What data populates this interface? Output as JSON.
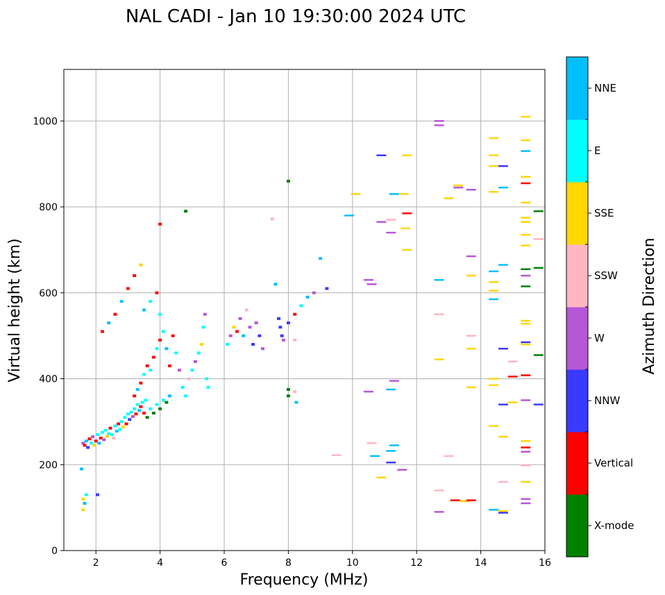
{
  "chart_data": {
    "type": "scatter",
    "title": "NAL CADI - Jan 10 19:30:00 2024 UTC",
    "xlabel": "Frequency (MHz)",
    "ylabel": "Virtual height (km)",
    "xlim": [
      1,
      16
    ],
    "ylim": [
      0,
      1120
    ],
    "xticks": [
      2,
      4,
      6,
      8,
      10,
      12,
      14,
      16
    ],
    "yticks": [
      0,
      200,
      400,
      600,
      800,
      1000
    ],
    "grid": true,
    "colorbar": {
      "label": "Azimuth Direction",
      "placement": "right",
      "entries": [
        {
          "name": "X-mode",
          "color": "#008000"
        },
        {
          "name": "Vertical",
          "color": "#ff0000"
        },
        {
          "name": "NNW",
          "color": "#3a3aff"
        },
        {
          "name": "W",
          "color": "#b657d6"
        },
        {
          "name": "SSW",
          "color": "#ffb6c1"
        },
        {
          "name": "SSE",
          "color": "#ffd700"
        },
        {
          "name": "E",
          "color": "#00ffff"
        },
        {
          "name": "NNE",
          "color": "#00bfff"
        }
      ]
    },
    "points": [
      [
        1.6,
        250,
        "W"
      ],
      [
        1.65,
        245,
        "Vertical"
      ],
      [
        1.7,
        255,
        "NNE"
      ],
      [
        1.75,
        240,
        "NNW"
      ],
      [
        1.8,
        260,
        "Vertical"
      ],
      [
        1.85,
        250,
        "E"
      ],
      [
        1.9,
        265,
        "W"
      ],
      [
        1.95,
        245,
        "SSE"
      ],
      [
        2.0,
        255,
        "Vertical"
      ],
      [
        2.05,
        270,
        "E"
      ],
      [
        2.1,
        250,
        "NNE"
      ],
      [
        2.15,
        262,
        "Vertical"
      ],
      [
        2.2,
        275,
        "E"
      ],
      [
        2.25,
        258,
        "W"
      ],
      [
        2.3,
        280,
        "E"
      ],
      [
        2.35,
        266,
        "SSE"
      ],
      [
        2.4,
        272,
        "E"
      ],
      [
        2.45,
        285,
        "Vertical"
      ],
      [
        2.5,
        270,
        "E"
      ],
      [
        2.55,
        262,
        "SSW"
      ],
      [
        2.6,
        290,
        "E"
      ],
      [
        2.65,
        278,
        "NNE"
      ],
      [
        2.7,
        295,
        "Vertical"
      ],
      [
        2.75,
        282,
        "E"
      ],
      [
        2.8,
        300,
        "E"
      ],
      [
        2.85,
        288,
        "SSE"
      ],
      [
        2.9,
        310,
        "E"
      ],
      [
        2.95,
        295,
        "Vertical"
      ],
      [
        3.0,
        318,
        "E"
      ],
      [
        3.05,
        305,
        "NNW"
      ],
      [
        3.1,
        322,
        "E"
      ],
      [
        3.15,
        312,
        "W"
      ],
      [
        3.2,
        330,
        "E"
      ],
      [
        3.25,
        318,
        "Vertical"
      ],
      [
        3.3,
        340,
        "E"
      ],
      [
        3.35,
        326,
        "NNE"
      ],
      [
        3.4,
        335,
        "Vertical"
      ],
      [
        3.45,
        345,
        "E"
      ],
      [
        3.5,
        320,
        "Vertical"
      ],
      [
        3.55,
        350,
        "E"
      ],
      [
        3.6,
        310,
        "X-mode"
      ],
      [
        3.7,
        330,
        "E"
      ],
      [
        3.8,
        320,
        "X-mode"
      ],
      [
        3.9,
        340,
        "E"
      ],
      [
        4.0,
        330,
        "X-mode"
      ],
      [
        4.1,
        350,
        "E"
      ],
      [
        4.2,
        345,
        "X-mode"
      ],
      [
        4.3,
        360,
        "NNE"
      ],
      [
        3.2,
        360,
        "Vertical"
      ],
      [
        3.3,
        375,
        "NNE"
      ],
      [
        3.4,
        390,
        "Vertical"
      ],
      [
        3.5,
        410,
        "E"
      ],
      [
        3.6,
        430,
        "Vertical"
      ],
      [
        3.7,
        420,
        "E"
      ],
      [
        3.8,
        450,
        "Vertical"
      ],
      [
        3.9,
        470,
        "E"
      ],
      [
        4.0,
        490,
        "Vertical"
      ],
      [
        4.1,
        510,
        "E"
      ],
      [
        4.2,
        470,
        "NNE"
      ],
      [
        4.3,
        430,
        "Vertical"
      ],
      [
        3.5,
        560,
        "NNE"
      ],
      [
        3.7,
        580,
        "E"
      ],
      [
        3.9,
        600,
        "Vertical"
      ],
      [
        4.0,
        550,
        "E"
      ],
      [
        4.4,
        500,
        "Vertical"
      ],
      [
        4.5,
        460,
        "E"
      ],
      [
        4.6,
        420,
        "W"
      ],
      [
        4.7,
        380,
        "E"
      ],
      [
        4.8,
        360,
        "E"
      ],
      [
        4.9,
        400,
        "SSW"
      ],
      [
        5.0,
        420,
        "E"
      ],
      [
        5.1,
        440,
        "W"
      ],
      [
        5.2,
        460,
        "E"
      ],
      [
        5.3,
        480,
        "SSE"
      ],
      [
        5.35,
        520,
        "E"
      ],
      [
        5.4,
        550,
        "W"
      ],
      [
        5.45,
        400,
        "E"
      ],
      [
        5.5,
        380,
        "E"
      ],
      [
        2.2,
        510,
        "Vertical"
      ],
      [
        2.4,
        530,
        "NNE"
      ],
      [
        2.6,
        550,
        "Vertical"
      ],
      [
        2.8,
        580,
        "NNE"
      ],
      [
        3.0,
        610,
        "Vertical"
      ],
      [
        3.2,
        640,
        "Vertical"
      ],
      [
        3.4,
        665,
        "SSE"
      ],
      [
        6.1,
        480,
        "E"
      ],
      [
        6.2,
        500,
        "W"
      ],
      [
        6.3,
        520,
        "SSE"
      ],
      [
        6.4,
        510,
        "Vertical"
      ],
      [
        6.5,
        540,
        "W"
      ],
      [
        6.6,
        500,
        "NNE"
      ],
      [
        6.7,
        560,
        "SSW"
      ],
      [
        6.8,
        520,
        "W"
      ],
      [
        6.9,
        480,
        "NNW"
      ],
      [
        7.0,
        530,
        "W"
      ],
      [
        7.1,
        500,
        "NNW"
      ],
      [
        7.2,
        470,
        "W"
      ],
      [
        7.7,
        540,
        "NNW"
      ],
      [
        7.75,
        520,
        "NNW"
      ],
      [
        7.8,
        500,
        "NNW"
      ],
      [
        7.85,
        490,
        "W"
      ],
      [
        8.0,
        530,
        "NNW"
      ],
      [
        8.2,
        550,
        "Vertical"
      ],
      [
        8.4,
        570,
        "E"
      ],
      [
        8.6,
        590,
        "NNE"
      ],
      [
        8.8,
        600,
        "W"
      ],
      [
        9.0,
        680,
        "NNE"
      ],
      [
        9.2,
        610,
        "NNW"
      ],
      [
        8.0,
        860,
        "X-mode"
      ],
      [
        1.6,
        120,
        "SSE"
      ],
      [
        1.65,
        110,
        "NNE"
      ],
      [
        1.7,
        130,
        "E"
      ],
      [
        1.55,
        190,
        "NNE"
      ],
      [
        2.05,
        130,
        "NNW"
      ],
      [
        1.6,
        95,
        "SSE"
      ],
      [
        10.1,
        830,
        "SSE"
      ],
      [
        10.9,
        920,
        "NNW"
      ],
      [
        11.3,
        830,
        "NNE"
      ],
      [
        11.6,
        830,
        "SSE"
      ],
      [
        11.7,
        920,
        "SSE"
      ],
      [
        11.65,
        750,
        "SSE"
      ],
      [
        11.7,
        785,
        "Vertical"
      ],
      [
        11.2,
        770,
        "SSW"
      ],
      [
        10.9,
        765,
        "W"
      ],
      [
        11.2,
        740,
        "W"
      ],
      [
        11.7,
        700,
        "SSE"
      ],
      [
        9.9,
        780,
        "NNE"
      ],
      [
        10.5,
        630,
        "W"
      ],
      [
        10.6,
        620,
        "W"
      ],
      [
        10.5,
        370,
        "W"
      ],
      [
        11.3,
        395,
        "W"
      ],
      [
        11.2,
        375,
        "NNE"
      ],
      [
        10.6,
        250,
        "SSW"
      ],
      [
        10.7,
        220,
        "NNE"
      ],
      [
        10.9,
        170,
        "SSE"
      ],
      [
        11.2,
        205,
        "NNW"
      ],
      [
        11.3,
        245,
        "NNE"
      ],
      [
        11.55,
        188,
        "W"
      ],
      [
        11.2,
        232,
        "NNE"
      ],
      [
        12.7,
        1000,
        "W"
      ],
      [
        12.7,
        990,
        "W"
      ],
      [
        12.7,
        630,
        "NNE"
      ],
      [
        12.7,
        550,
        "SSW"
      ],
      [
        12.7,
        445,
        "SSE"
      ],
      [
        12.7,
        140,
        "SSW"
      ],
      [
        12.7,
        90,
        "W"
      ],
      [
        13.0,
        820,
        "SSE"
      ],
      [
        13.3,
        850,
        "SSE"
      ],
      [
        13.7,
        840,
        "W"
      ],
      [
        13.3,
        845,
        "W"
      ],
      [
        13.0,
        220,
        "SSW"
      ],
      [
        13.2,
        117,
        "Vertical"
      ],
      [
        13.5,
        115,
        "SSE"
      ],
      [
        13.7,
        117,
        "Vertical"
      ],
      [
        13.7,
        685,
        "W"
      ],
      [
        13.7,
        640,
        "SSE"
      ],
      [
        13.7,
        500,
        "SSW"
      ],
      [
        13.7,
        470,
        "SSE"
      ],
      [
        13.7,
        380,
        "SSE"
      ],
      [
        14.4,
        960,
        "SSE"
      ],
      [
        14.4,
        920,
        "SSE"
      ],
      [
        14.4,
        895,
        "SSE"
      ],
      [
        14.7,
        895,
        "NNW"
      ],
      [
        14.4,
        835,
        "SSE"
      ],
      [
        14.7,
        845,
        "NNE"
      ],
      [
        14.4,
        650,
        "NNE"
      ],
      [
        14.7,
        665,
        "NNE"
      ],
      [
        14.4,
        625,
        "SSE"
      ],
      [
        14.4,
        605,
        "SSE"
      ],
      [
        14.4,
        585,
        "NNE"
      ],
      [
        14.7,
        470,
        "NNW"
      ],
      [
        15.0,
        440,
        "SSW"
      ],
      [
        14.4,
        400,
        "SSE"
      ],
      [
        14.4,
        385,
        "SSE"
      ],
      [
        15.0,
        405,
        "Vertical"
      ],
      [
        14.7,
        340,
        "NNW"
      ],
      [
        15.0,
        345,
        "SSE"
      ],
      [
        14.4,
        290,
        "SSE"
      ],
      [
        14.7,
        265,
        "SSE"
      ],
      [
        14.7,
        160,
        "SSW"
      ],
      [
        14.4,
        95,
        "NNE"
      ],
      [
        14.7,
        92,
        "SSE"
      ],
      [
        14.7,
        88,
        "NNW"
      ],
      [
        15.4,
        1010,
        "SSE"
      ],
      [
        15.4,
        955,
        "SSE"
      ],
      [
        15.4,
        930,
        "NNE"
      ],
      [
        15.4,
        870,
        "SSE"
      ],
      [
        15.4,
        855,
        "Vertical"
      ],
      [
        15.4,
        810,
        "SSE"
      ],
      [
        15.4,
        775,
        "SSE"
      ],
      [
        15.4,
        765,
        "SSE"
      ],
      [
        15.4,
        735,
        "SSE"
      ],
      [
        15.4,
        710,
        "SSE"
      ],
      [
        15.4,
        655,
        "X-mode"
      ],
      [
        15.4,
        640,
        "W"
      ],
      [
        15.4,
        615,
        "X-mode"
      ],
      [
        15.4,
        535,
        "SSE"
      ],
      [
        15.4,
        528,
        "SSE"
      ],
      [
        15.4,
        485,
        "NNW"
      ],
      [
        15.4,
        480,
        "SSE"
      ],
      [
        15.4,
        408,
        "Vertical"
      ],
      [
        15.4,
        350,
        "W"
      ],
      [
        15.4,
        255,
        "SSE"
      ],
      [
        15.4,
        240,
        "Vertical"
      ],
      [
        15.4,
        230,
        "W"
      ],
      [
        15.4,
        198,
        "SSW"
      ],
      [
        15.4,
        160,
        "SSE"
      ],
      [
        15.4,
        120,
        "W"
      ],
      [
        15.4,
        110,
        "W"
      ],
      [
        15.8,
        790,
        "X-mode"
      ],
      [
        15.8,
        725,
        "SSW"
      ],
      [
        15.8,
        658,
        "X-mode"
      ],
      [
        15.8,
        455,
        "X-mode"
      ],
      [
        15.8,
        340,
        "NNW"
      ],
      [
        9.5,
        222,
        "SSW"
      ],
      [
        8.2,
        370,
        "SSW"
      ],
      [
        8.25,
        345,
        "NNE"
      ],
      [
        8.0,
        375,
        "X-mode"
      ],
      [
        8.0,
        360,
        "X-mode"
      ],
      [
        8.2,
        490,
        "SSW"
      ],
      [
        7.6,
        620,
        "NNE"
      ],
      [
        7.5,
        772,
        "SSW"
      ],
      [
        4.8,
        790,
        "X-mode"
      ],
      [
        4.0,
        760,
        "Vertical"
      ]
    ]
  }
}
